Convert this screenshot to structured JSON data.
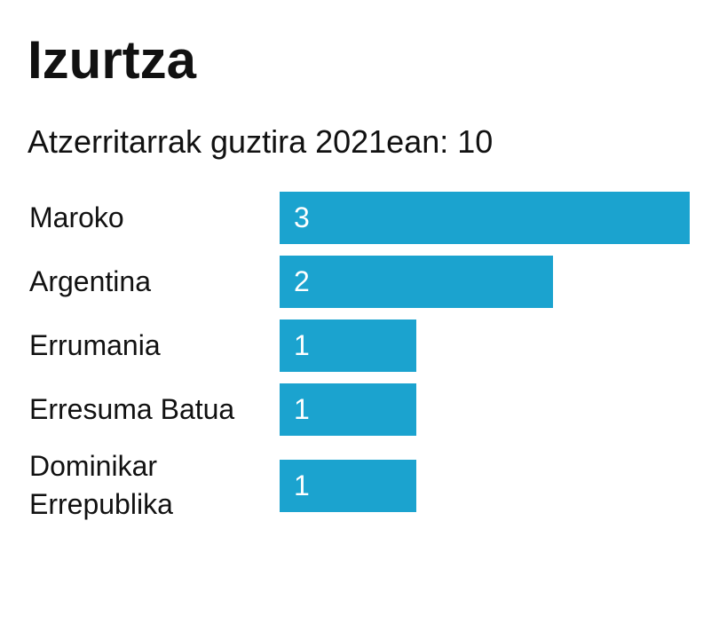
{
  "chart_data": {
    "type": "bar",
    "orientation": "horizontal",
    "title": "Izurtza",
    "subtitle": "Atzerritarrak guztira 2021ean: 10",
    "categories": [
      "Maroko",
      "Argentina",
      "Errumania",
      "Erresuma Batua",
      "Dominikar Errepublika"
    ],
    "values": [
      3,
      2,
      1,
      1,
      1
    ],
    "color": "#1ba3cf"
  }
}
